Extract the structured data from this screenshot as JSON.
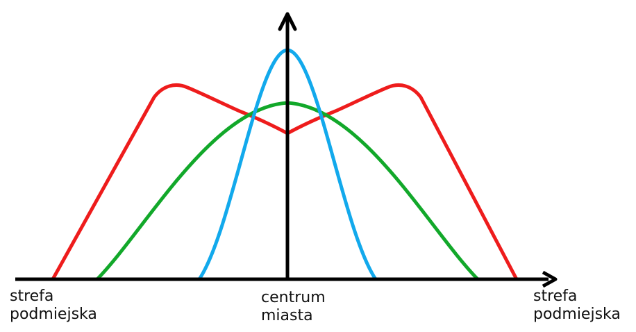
{
  "labels": {
    "left": [
      "strefa",
      "podmiejska"
    ],
    "center": [
      "centrum",
      "miasta"
    ],
    "right": [
      "strefa",
      "podmiejska"
    ]
  },
  "colors": {
    "axes": "#000000",
    "red_curve": "#ee1c1c",
    "green_curve": "#12a82a",
    "blue_curve": "#12a9ec"
  }
}
